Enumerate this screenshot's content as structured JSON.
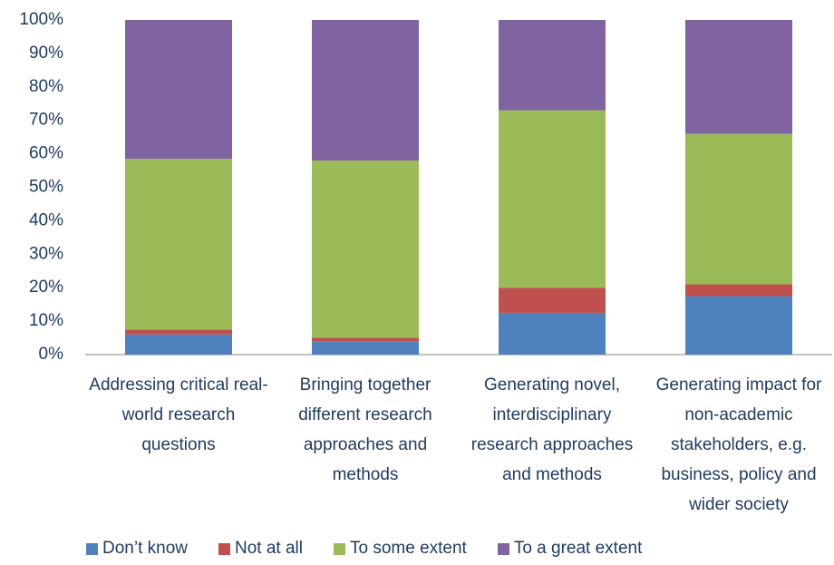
{
  "chart_data": {
    "type": "stacked_bar",
    "categories": [
      "Addressing critical real-world research questions",
      "Bringing together different research approaches and methods",
      "Generating novel, interdisciplinary research approaches and methods",
      "Generating impact for non-academic stakeholders, e.g. business, policy and wider society"
    ],
    "series": [
      {
        "name": "Don’t know",
        "color": "#4f81bd",
        "values": [
          6,
          4,
          12.5,
          17.5
        ]
      },
      {
        "name": "Not at all",
        "color": "#c0504d",
        "values": [
          1.5,
          1,
          7.5,
          3.5
        ]
      },
      {
        "name": "To some extent",
        "color": "#9bbb59",
        "values": [
          51,
          53,
          53,
          45
        ]
      },
      {
        "name": "To a great extent",
        "color": "#8064a2",
        "values": [
          41.5,
          42,
          27,
          34
        ]
      }
    ],
    "ylim": [
      0,
      100
    ],
    "yticks": [
      {
        "value": 0,
        "label": "0%"
      },
      {
        "value": 10,
        "label": "10%"
      },
      {
        "value": 20,
        "label": "20%"
      },
      {
        "value": 30,
        "label": "30%"
      },
      {
        "value": 40,
        "label": "40%"
      },
      {
        "value": 50,
        "label": "50%"
      },
      {
        "value": 60,
        "label": "60%"
      },
      {
        "value": 70,
        "label": "70%"
      },
      {
        "value": 80,
        "label": "80%"
      },
      {
        "value": 90,
        "label": "90%"
      },
      {
        "value": 100,
        "label": "100%"
      }
    ],
    "legend": "bottom"
  }
}
